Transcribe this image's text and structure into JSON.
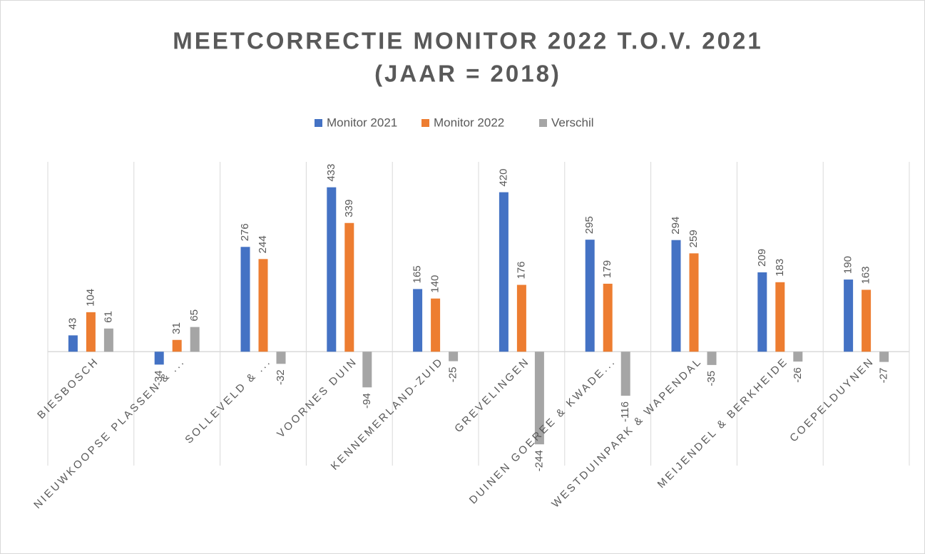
{
  "chart_data": {
    "type": "bar",
    "title": [
      "MEETCORRECTIE MONITOR 2022 T.O.V. 2021",
      "(JAAR = 2018)"
    ],
    "categories": [
      "BIESBOSCH",
      "NIEUWKOOPSE PLASSEN & ...",
      "SOLLEVELD & ...",
      "VOORNES DUIN",
      "KENNEMERLAND-ZUID",
      "GREVELINGEN",
      "DUINEN GOEREE & KWADE...",
      "WESTDUINPARK & WAPENDAL",
      "MEIJENDEL & BERKHEIDE",
      "COEPELDUYNEN"
    ],
    "series": [
      {
        "name": "Monitor 2021",
        "color": "#4472c4",
        "values": [
          43,
          -34,
          276,
          433,
          165,
          420,
          295,
          294,
          209,
          190
        ]
      },
      {
        "name": "Monitor 2022",
        "color": "#ed7d31",
        "values": [
          104,
          31,
          244,
          339,
          140,
          176,
          179,
          259,
          183,
          163
        ]
      },
      {
        "name": "Verschil",
        "color": "#a5a5a5",
        "values": [
          61,
          65,
          -32,
          -94,
          -25,
          -244,
          -116,
          -35,
          -26,
          -27
        ]
      }
    ],
    "ylim": [
      -300,
      500
    ],
    "legend": "top"
  }
}
